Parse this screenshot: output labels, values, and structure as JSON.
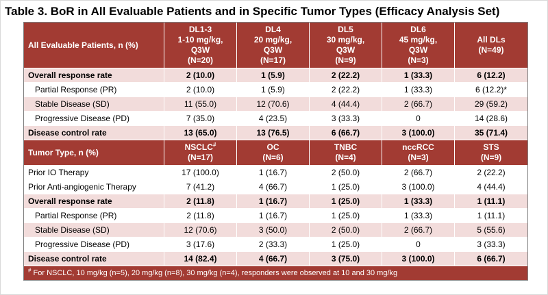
{
  "title": "Table 3. BoR in All Evaluable Patients and in Specific Tumor Types (Efficacy Analysis Set)",
  "colors": {
    "header_bg": "#A23B33",
    "band_pink": "#F2DCDB",
    "band_white": "#FFFFFF",
    "header_text": "#FFFFFF",
    "body_text": "#000000",
    "grid_line": "#FFFFFF",
    "outer_border": "#7F7F7F",
    "title_text": "#000000"
  },
  "chart_data": {
    "type": "table",
    "footnote": "# For NSCLC, 10 mg/kg (n=5), 20 mg/kg (n=8), 30 mg/kg (n=4), responders were observed at 10 and 30 mg/kg",
    "sections": [
      {
        "section_label": "All Evaluable Patients, n (%)",
        "column_headers": [
          [
            "DL1-3",
            "1-10 mg/kg,",
            "Q3W",
            "(N=20)"
          ],
          [
            "DL4",
            "20 mg/kg,",
            "Q3W",
            "(N=17)"
          ],
          [
            "DL5",
            "30 mg/kg,",
            "Q3W",
            "(N=9)"
          ],
          [
            "DL6",
            "45 mg/kg,",
            "Q3W",
            "(N=3)"
          ],
          [
            "All DLs",
            "(N=49)"
          ]
        ],
        "rows": [
          {
            "label": "Overall response rate",
            "bold": true,
            "indent": false,
            "band": "pink",
            "values": [
              "2 (10.0)",
              "1 (5.9)",
              "2 (22.2)",
              "1 (33.3)",
              "6 (12.2)"
            ]
          },
          {
            "label": "Partial Response (PR)",
            "bold": false,
            "indent": true,
            "band": "white",
            "values": [
              "2 (10.0)",
              "1 (5.9)",
              "2 (22.2)",
              "1 (33.3)",
              "6 (12.2)*"
            ]
          },
          {
            "label": "Stable Disease (SD)",
            "bold": false,
            "indent": true,
            "band": "pink",
            "values": [
              "11 (55.0)",
              "12 (70.6)",
              "4 (44.4)",
              "2 (66.7)",
              "29 (59.2)"
            ]
          },
          {
            "label": "Progressive Disease (PD)",
            "bold": false,
            "indent": true,
            "band": "white",
            "values": [
              "7 (35.0)",
              "4 (23.5)",
              "3 (33.3)",
              "0",
              "14 (28.6)"
            ]
          },
          {
            "label": "Disease control rate",
            "bold": true,
            "indent": false,
            "band": "pink",
            "values": [
              "13 (65.0)",
              "13 (76.5)",
              "6 (66.7)",
              "3 (100.0)",
              "35 (71.4)"
            ]
          }
        ]
      },
      {
        "section_label": "Tumor Type, n (%)",
        "column_headers": [
          [
            "NSCLC#",
            "(N=17)"
          ],
          [
            "OC",
            "(N=6)"
          ],
          [
            "TNBC",
            "(N=4)"
          ],
          [
            "nccRCC",
            "(N=3)"
          ],
          [
            "STS",
            "(N=9)"
          ]
        ],
        "rows": [
          {
            "label": "Prior IO Therapy",
            "bold": false,
            "indent": false,
            "band": "white",
            "values": [
              "17 (100.0)",
              "1 (16.7)",
              "2 (50.0)",
              "2 (66.7)",
              "2 (22.2)"
            ]
          },
          {
            "label": "Prior Anti-angiogenic Therapy",
            "bold": false,
            "indent": false,
            "band": "white",
            "values": [
              "7 (41.2)",
              "4 (66.7)",
              "1 (25.0)",
              "3 (100.0)",
              "4 (44.4)"
            ]
          },
          {
            "label": "Overall response rate",
            "bold": true,
            "indent": false,
            "band": "pink",
            "values": [
              "2 (11.8)",
              "1 (16.7)",
              "1 (25.0)",
              "1 (33.3)",
              "1 (11.1)"
            ]
          },
          {
            "label": "Partial Response (PR)",
            "bold": false,
            "indent": true,
            "band": "white",
            "values": [
              "2 (11.8)",
              "1 (16.7)",
              "1 (25.0)",
              "1 (33.3)",
              "1 (11.1)"
            ]
          },
          {
            "label": "Stable Disease (SD)",
            "bold": false,
            "indent": true,
            "band": "pink",
            "values": [
              "12 (70.6)",
              "3 (50.0)",
              "2 (50.0)",
              "2 (66.7)",
              "5 (55.6)"
            ]
          },
          {
            "label": "Progressive Disease (PD)",
            "bold": false,
            "indent": true,
            "band": "white",
            "values": [
              "3 (17.6)",
              "2 (33.3)",
              "1 (25.0)",
              "0",
              "3 (33.3)"
            ]
          },
          {
            "label": "Disease control rate",
            "bold": true,
            "indent": false,
            "band": "pink",
            "values": [
              "14 (82.4)",
              "4 (66.7)",
              "3 (75.0)",
              "3 (100.0)",
              "6 (66.7)"
            ]
          }
        ]
      }
    ]
  }
}
